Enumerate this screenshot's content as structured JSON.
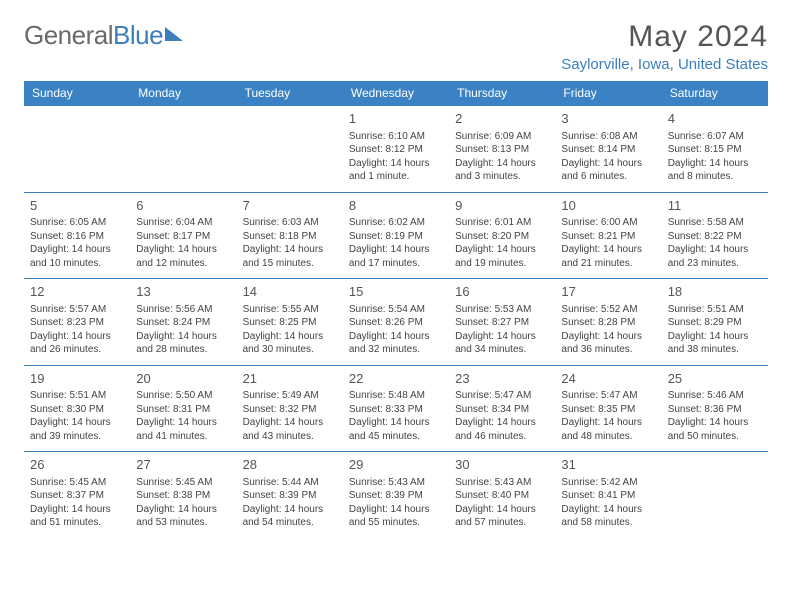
{
  "brand": {
    "part1": "General",
    "part2": "Blue"
  },
  "heading": {
    "month": "May 2024",
    "location": "Saylorville, Iowa, United States"
  },
  "colors": {
    "accent": "#3b82c4",
    "text": "#444444"
  },
  "weekdays": [
    "Sunday",
    "Monday",
    "Tuesday",
    "Wednesday",
    "Thursday",
    "Friday",
    "Saturday"
  ],
  "weeks": [
    [
      null,
      null,
      null,
      {
        "d": "1",
        "sr": "Sunrise: 6:10 AM",
        "ss": "Sunset: 8:12 PM",
        "dl": "Daylight: 14 hours and 1 minute."
      },
      {
        "d": "2",
        "sr": "Sunrise: 6:09 AM",
        "ss": "Sunset: 8:13 PM",
        "dl": "Daylight: 14 hours and 3 minutes."
      },
      {
        "d": "3",
        "sr": "Sunrise: 6:08 AM",
        "ss": "Sunset: 8:14 PM",
        "dl": "Daylight: 14 hours and 6 minutes."
      },
      {
        "d": "4",
        "sr": "Sunrise: 6:07 AM",
        "ss": "Sunset: 8:15 PM",
        "dl": "Daylight: 14 hours and 8 minutes."
      }
    ],
    [
      {
        "d": "5",
        "sr": "Sunrise: 6:05 AM",
        "ss": "Sunset: 8:16 PM",
        "dl": "Daylight: 14 hours and 10 minutes."
      },
      {
        "d": "6",
        "sr": "Sunrise: 6:04 AM",
        "ss": "Sunset: 8:17 PM",
        "dl": "Daylight: 14 hours and 12 minutes."
      },
      {
        "d": "7",
        "sr": "Sunrise: 6:03 AM",
        "ss": "Sunset: 8:18 PM",
        "dl": "Daylight: 14 hours and 15 minutes."
      },
      {
        "d": "8",
        "sr": "Sunrise: 6:02 AM",
        "ss": "Sunset: 8:19 PM",
        "dl": "Daylight: 14 hours and 17 minutes."
      },
      {
        "d": "9",
        "sr": "Sunrise: 6:01 AM",
        "ss": "Sunset: 8:20 PM",
        "dl": "Daylight: 14 hours and 19 minutes."
      },
      {
        "d": "10",
        "sr": "Sunrise: 6:00 AM",
        "ss": "Sunset: 8:21 PM",
        "dl": "Daylight: 14 hours and 21 minutes."
      },
      {
        "d": "11",
        "sr": "Sunrise: 5:58 AM",
        "ss": "Sunset: 8:22 PM",
        "dl": "Daylight: 14 hours and 23 minutes."
      }
    ],
    [
      {
        "d": "12",
        "sr": "Sunrise: 5:57 AM",
        "ss": "Sunset: 8:23 PM",
        "dl": "Daylight: 14 hours and 26 minutes."
      },
      {
        "d": "13",
        "sr": "Sunrise: 5:56 AM",
        "ss": "Sunset: 8:24 PM",
        "dl": "Daylight: 14 hours and 28 minutes."
      },
      {
        "d": "14",
        "sr": "Sunrise: 5:55 AM",
        "ss": "Sunset: 8:25 PM",
        "dl": "Daylight: 14 hours and 30 minutes."
      },
      {
        "d": "15",
        "sr": "Sunrise: 5:54 AM",
        "ss": "Sunset: 8:26 PM",
        "dl": "Daylight: 14 hours and 32 minutes."
      },
      {
        "d": "16",
        "sr": "Sunrise: 5:53 AM",
        "ss": "Sunset: 8:27 PM",
        "dl": "Daylight: 14 hours and 34 minutes."
      },
      {
        "d": "17",
        "sr": "Sunrise: 5:52 AM",
        "ss": "Sunset: 8:28 PM",
        "dl": "Daylight: 14 hours and 36 minutes."
      },
      {
        "d": "18",
        "sr": "Sunrise: 5:51 AM",
        "ss": "Sunset: 8:29 PM",
        "dl": "Daylight: 14 hours and 38 minutes."
      }
    ],
    [
      {
        "d": "19",
        "sr": "Sunrise: 5:51 AM",
        "ss": "Sunset: 8:30 PM",
        "dl": "Daylight: 14 hours and 39 minutes."
      },
      {
        "d": "20",
        "sr": "Sunrise: 5:50 AM",
        "ss": "Sunset: 8:31 PM",
        "dl": "Daylight: 14 hours and 41 minutes."
      },
      {
        "d": "21",
        "sr": "Sunrise: 5:49 AM",
        "ss": "Sunset: 8:32 PM",
        "dl": "Daylight: 14 hours and 43 minutes."
      },
      {
        "d": "22",
        "sr": "Sunrise: 5:48 AM",
        "ss": "Sunset: 8:33 PM",
        "dl": "Daylight: 14 hours and 45 minutes."
      },
      {
        "d": "23",
        "sr": "Sunrise: 5:47 AM",
        "ss": "Sunset: 8:34 PM",
        "dl": "Daylight: 14 hours and 46 minutes."
      },
      {
        "d": "24",
        "sr": "Sunrise: 5:47 AM",
        "ss": "Sunset: 8:35 PM",
        "dl": "Daylight: 14 hours and 48 minutes."
      },
      {
        "d": "25",
        "sr": "Sunrise: 5:46 AM",
        "ss": "Sunset: 8:36 PM",
        "dl": "Daylight: 14 hours and 50 minutes."
      }
    ],
    [
      {
        "d": "26",
        "sr": "Sunrise: 5:45 AM",
        "ss": "Sunset: 8:37 PM",
        "dl": "Daylight: 14 hours and 51 minutes."
      },
      {
        "d": "27",
        "sr": "Sunrise: 5:45 AM",
        "ss": "Sunset: 8:38 PM",
        "dl": "Daylight: 14 hours and 53 minutes."
      },
      {
        "d": "28",
        "sr": "Sunrise: 5:44 AM",
        "ss": "Sunset: 8:39 PM",
        "dl": "Daylight: 14 hours and 54 minutes."
      },
      {
        "d": "29",
        "sr": "Sunrise: 5:43 AM",
        "ss": "Sunset: 8:39 PM",
        "dl": "Daylight: 14 hours and 55 minutes."
      },
      {
        "d": "30",
        "sr": "Sunrise: 5:43 AM",
        "ss": "Sunset: 8:40 PM",
        "dl": "Daylight: 14 hours and 57 minutes."
      },
      {
        "d": "31",
        "sr": "Sunrise: 5:42 AM",
        "ss": "Sunset: 8:41 PM",
        "dl": "Daylight: 14 hours and 58 minutes."
      },
      null
    ]
  ]
}
